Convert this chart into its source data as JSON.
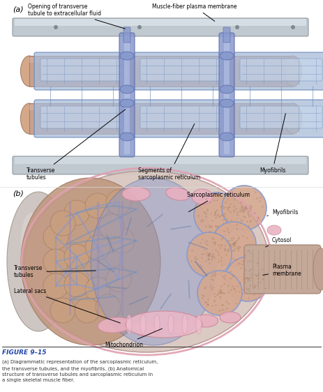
{
  "figure_label": "FIGURE 9–15",
  "caption_line1": "(a) Diagrammatic representation of the sarcoplasmic reticulum,",
  "caption_line2": "the transverse tubules, and the myofibrils. (b) Anatomical",
  "caption_line3": "structure of transverse tubules and sarcoplasmic reticulum in",
  "caption_line4": "a single skeletal muscle fiber.",
  "panel_a_label": "(a)",
  "panel_b_label": "(b)",
  "bg_color": "#ffffff",
  "ann_fontsize": 5.5,
  "membrane_color": "#c0c8d0",
  "membrane_edge": "#909aa0",
  "myofibril_fill": "#c8a090",
  "myofibril_edge": "#a07860",
  "sr_fill": "#a8bcd8",
  "sr_edge": "#6688bb",
  "sr_dark": "#7090b8",
  "tt_color": "#8899cc",
  "outer_body_fill": "#c8b8b0",
  "outer_body_edge": "#a09088",
  "left_fill": "#b89080",
  "left_edge": "#907060",
  "right_sr_fill": "#90a8cc",
  "right_sr_edge": "#6688aa",
  "myo_right_fill": "#c8a090",
  "myo_right_edge": "#7090b8",
  "pink_fill": "#e8b0c0",
  "pink_edge": "#cc8899",
  "mito_fill": "#e8b8c8",
  "mito_edge": "#cc8899",
  "plasma_edge": "#e0a0b0",
  "gray_cylinder_fill": "#c0c8d0",
  "gray_cylinder_edge": "#909aa8",
  "striated_fill": "#c4a898",
  "striated_edge": "#a08070",
  "caption_title_color": "#2244aa",
  "panel_a_bg": "#f5f5f0"
}
